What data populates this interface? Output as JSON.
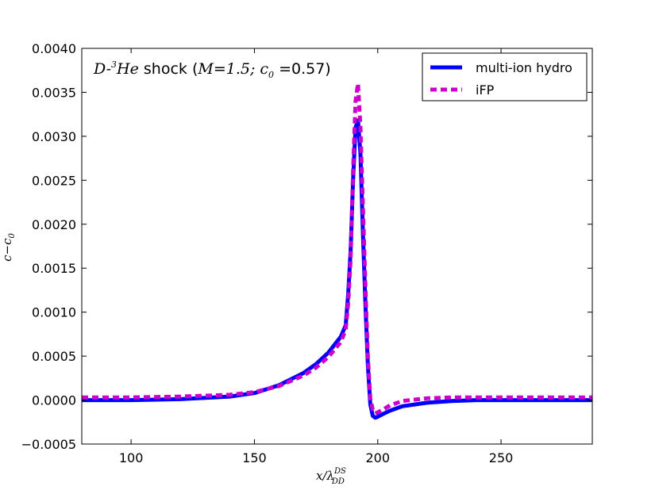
{
  "chart_data": {
    "type": "line",
    "title": {
      "species": "D-",
      "species_sup": "3",
      "species_end": "He",
      "word": " shock (",
      "mach": "M=1.5; c",
      "mach_sub": "0",
      "conc": " =0.57)"
    },
    "xlabel": {
      "main": "x/λ",
      "sup": "DS",
      "sub": "DD"
    },
    "ylabel": {
      "main": "c−c",
      "sub": "0"
    },
    "xlim": [
      80,
      287
    ],
    "ylim": [
      -0.0005,
      0.004
    ],
    "xticks": [
      100,
      150,
      200,
      250
    ],
    "xtick_labels": [
      "100",
      "150",
      "200",
      "250"
    ],
    "yticks": [
      -0.0005,
      0.0,
      0.0005,
      0.001,
      0.0015,
      0.002,
      0.0025,
      0.003,
      0.0035,
      0.004
    ],
    "ytick_labels": [
      "−0.0005",
      "0.0000",
      "0.0005",
      "0.0010",
      "0.0015",
      "0.0020",
      "0.0025",
      "0.0030",
      "0.0035",
      "0.0040"
    ],
    "legend_position": "top-right",
    "series": [
      {
        "name": "multi-ion hydro",
        "color": "#0000ff",
        "style": "solid",
        "x": [
          80,
          100,
          120,
          140,
          150,
          160,
          170,
          175,
          180,
          185,
          187,
          188,
          189,
          190,
          191,
          192,
          193,
          194,
          195,
          196,
          197,
          198,
          199,
          200,
          202,
          205,
          210,
          220,
          230,
          240,
          250,
          260,
          270,
          287
        ],
        "y": [
          0.0,
          0.0,
          1e-05,
          4e-05,
          8e-05,
          0.00017,
          0.00031,
          0.00041,
          0.00054,
          0.00072,
          0.00085,
          0.0012,
          0.0017,
          0.0025,
          0.0031,
          0.00318,
          0.0028,
          0.0019,
          0.0011,
          0.0004,
          -5e-05,
          -0.00018,
          -0.0002,
          -0.00019,
          -0.00016,
          -0.00012,
          -7e-05,
          -3e-05,
          -1e-05,
          0.0,
          0.0,
          0.0,
          0.0,
          0.0
        ]
      },
      {
        "name": "iFP",
        "color": "#cc00cc",
        "style": "dashed",
        "x": [
          80,
          100,
          120,
          140,
          150,
          160,
          170,
          175,
          180,
          185,
          187,
          188,
          189,
          190,
          191,
          192,
          193,
          194,
          195,
          196,
          197,
          198,
          199,
          200,
          202,
          205,
          210,
          220,
          230,
          240,
          250,
          260,
          270,
          287
        ],
        "y": [
          3e-05,
          3e-05,
          4e-05,
          6e-05,
          9e-05,
          0.00016,
          0.00028,
          0.00037,
          0.00049,
          0.00066,
          0.0008,
          0.0011,
          0.0016,
          0.0026,
          0.0034,
          0.0036,
          0.0031,
          0.0022,
          0.0013,
          0.0005,
          2e-05,
          -0.00011,
          -0.00015,
          -0.00014,
          -0.00011,
          -6e-05,
          -1e-05,
          2e-05,
          3e-05,
          3e-05,
          3e-05,
          3e-05,
          3e-05,
          3e-05
        ]
      }
    ]
  }
}
